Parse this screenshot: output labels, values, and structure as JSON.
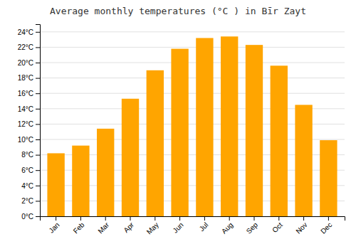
{
  "chart_data": {
    "type": "bar",
    "title": "Average monthly temperatures (°C ) in Bīr Zayt",
    "categories": [
      "Jan",
      "Feb",
      "Mar",
      "Apr",
      "May",
      "Jun",
      "Jul",
      "Aug",
      "Sep",
      "Oct",
      "Nov",
      "Dec"
    ],
    "values": [
      8.2,
      9.2,
      11.4,
      15.3,
      19.0,
      21.8,
      23.2,
      23.4,
      22.3,
      19.6,
      14.5,
      9.9
    ],
    "color": "#FFA500",
    "ylim": [
      0,
      25
    ],
    "yticks": [
      {
        "value": 0,
        "label": "0°C"
      },
      {
        "value": 2,
        "label": "2°C"
      },
      {
        "value": 4,
        "label": "4°C"
      },
      {
        "value": 6,
        "label": "6°C"
      },
      {
        "value": 8,
        "label": "8°C"
      },
      {
        "value": 10,
        "label": "10°C"
      },
      {
        "value": 12,
        "label": "12°C"
      },
      {
        "value": 14,
        "label": "14°C"
      },
      {
        "value": 16,
        "label": "16°C"
      },
      {
        "value": 18,
        "label": "18°C"
      },
      {
        "value": 20,
        "label": "20°C"
      },
      {
        "value": 22,
        "label": "22°C"
      },
      {
        "value": 24,
        "label": "24°C"
      }
    ],
    "grid": true
  }
}
